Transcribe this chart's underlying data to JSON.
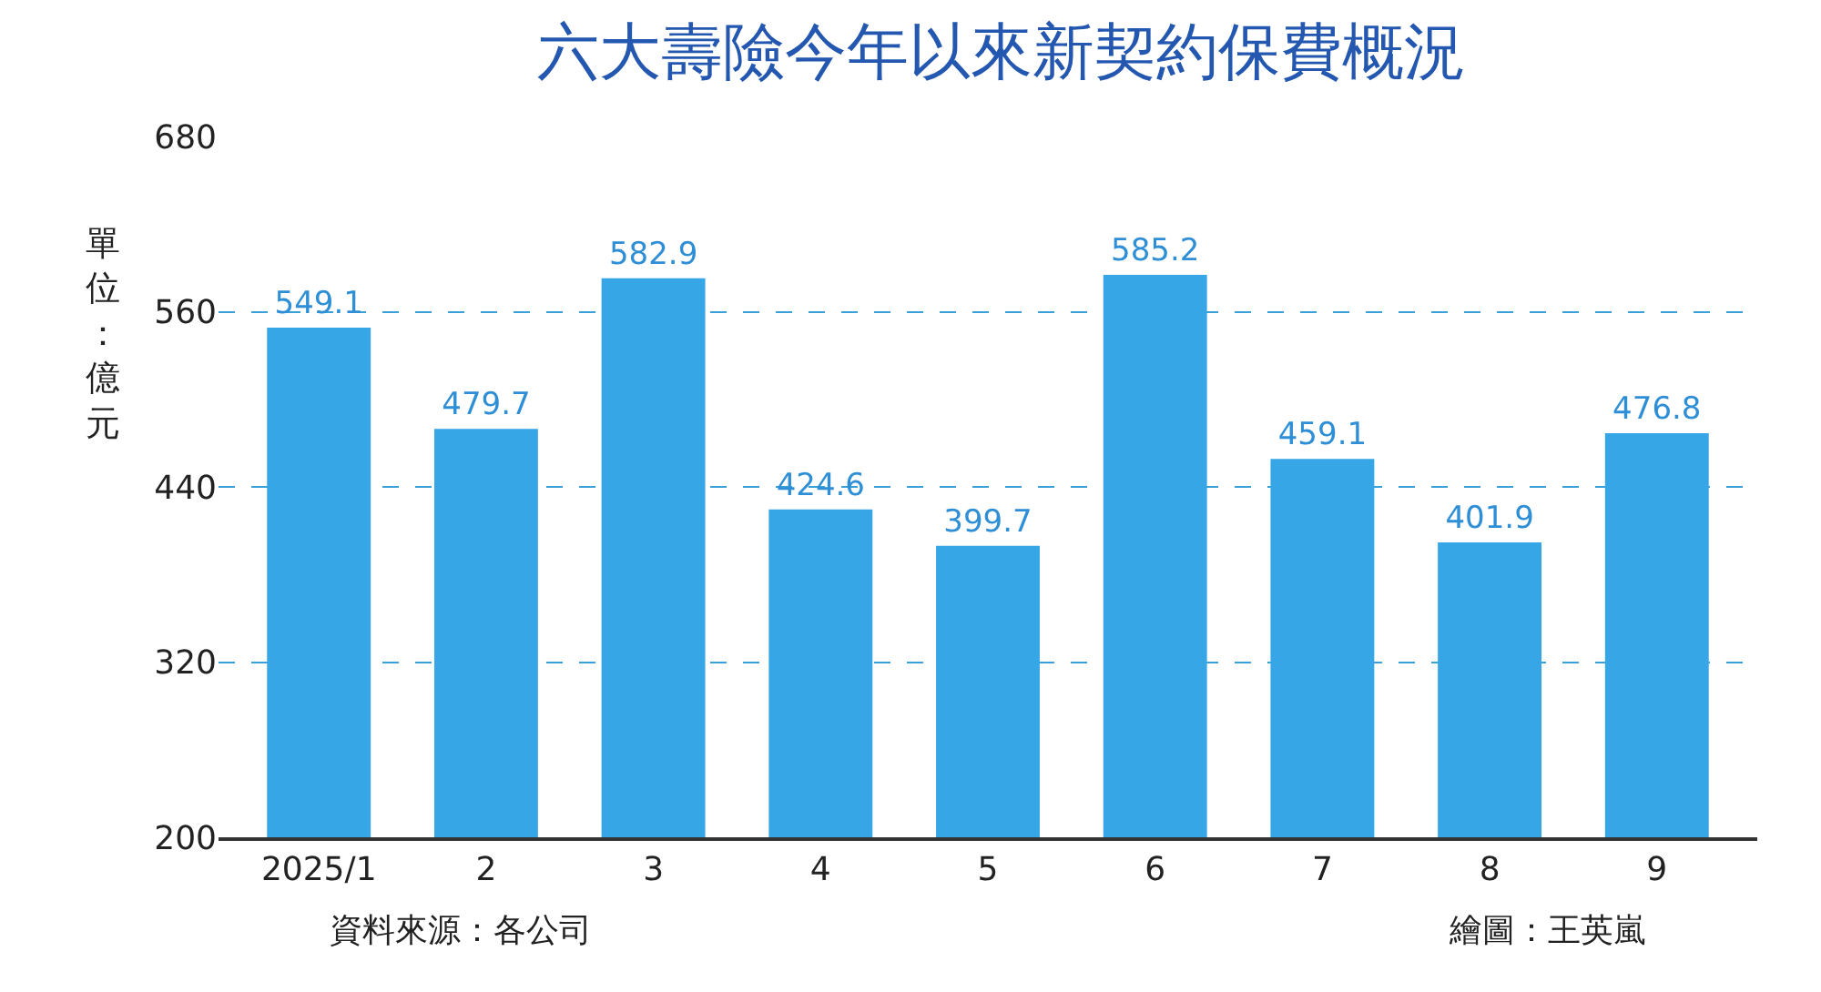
{
  "chart_data": {
    "type": "bar",
    "title": "六大壽險今年以來新契約保費概況",
    "ylabel": "單位：億元",
    "categories": [
      "2025/1",
      "2",
      "3",
      "4",
      "5",
      "6",
      "7",
      "8",
      "9"
    ],
    "values": [
      549.1,
      479.7,
      582.9,
      424.6,
      399.7,
      585.2,
      459.1,
      401.9,
      476.8
    ],
    "color": "#36a6e6",
    "ylim": [
      200,
      680
    ],
    "yticks": [
      200,
      320,
      440,
      560,
      680
    ],
    "grid": "y",
    "data_labels": true,
    "annotations": [
      "資料來源：各公司",
      "繪圖：王英嵐"
    ]
  }
}
